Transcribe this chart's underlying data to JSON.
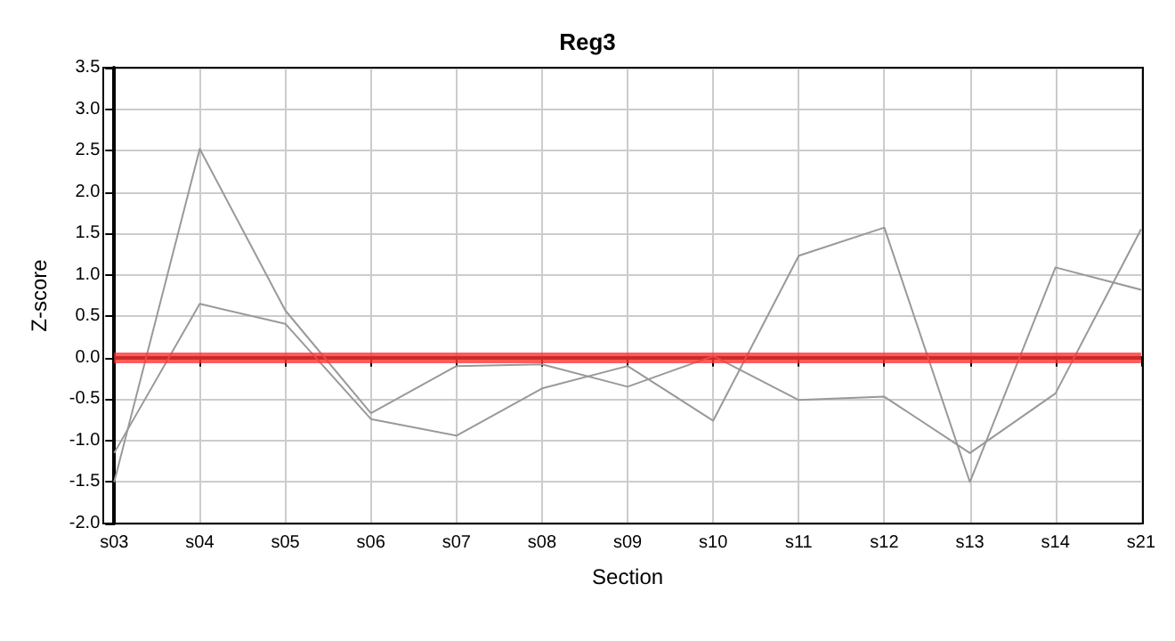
{
  "chart_data": {
    "type": "line",
    "title": "Reg3",
    "xlabel": "Section",
    "ylabel": "Z-score",
    "categories": [
      "s03",
      "s04",
      "s05",
      "s06",
      "s07",
      "s08",
      "s09",
      "s10",
      "s11",
      "s12",
      "s13",
      "s14",
      "s21"
    ],
    "series": [
      {
        "color": "#999999",
        "values": [
          -1.5,
          2.52,
          0.57,
          -0.67,
          -0.1,
          -0.08,
          -0.35,
          0.02,
          -0.51,
          -0.47,
          -1.15,
          -0.43,
          1.55
        ]
      },
      {
        "color": "#999999",
        "values": [
          -1.15,
          0.65,
          0.41,
          -0.74,
          -0.94,
          -0.37,
          -0.1,
          -0.76,
          1.23,
          1.57,
          -1.5,
          1.09,
          0.82
        ]
      }
    ],
    "ylim": [
      -2,
      3.5
    ],
    "yticks": [
      {
        "value": -2,
        "label": "-2.0"
      },
      -1.5,
      {
        "value": -1,
        "label": "-1.0"
      },
      -0.5,
      {
        "value": 0,
        "label": "0.0"
      },
      0.5,
      {
        "value": 1,
        "label": "1.0"
      },
      1.5,
      {
        "value": 2,
        "label": "2.0"
      },
      2.5,
      {
        "value": 3,
        "label": "3.0"
      },
      3.5
    ],
    "ref_lines": [
      {
        "axis": "y",
        "value": 0,
        "color": "#ff3333"
      }
    ],
    "grid": true,
    "marker": "none",
    "line_style": "solid"
  }
}
